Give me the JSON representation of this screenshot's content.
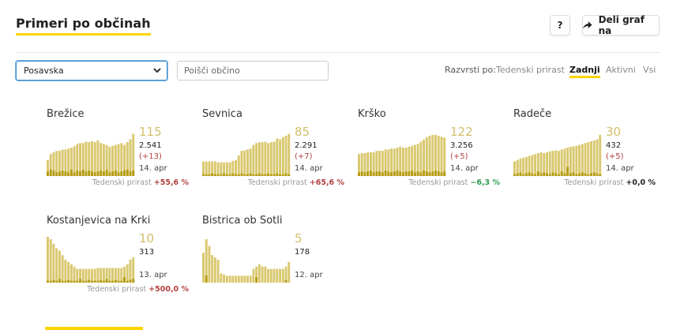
{
  "header": {
    "title": "Primeri po občinah",
    "help_label": "?",
    "share_label": "Deli graf na"
  },
  "filters": {
    "region_selected": "Posavska",
    "search_placeholder": "Poišči občino"
  },
  "sort": {
    "label": "Razvrsti po:",
    "options": [
      "Tedenski prirast",
      "Zadnji",
      "Aktivni",
      "Vsi"
    ],
    "active": "Zadnji"
  },
  "growth_label": "Tedenski prirast",
  "colors": {
    "accent": "#ffd400",
    "bar_total": "#d9c86f",
    "bar_new": "#b59b10",
    "delta_up": "#b0413e",
    "delta_down": "#2e9b53",
    "delta_zero": "#222222"
  },
  "cards": [
    {
      "name": "Brežice",
      "active": "115",
      "total": "2.541",
      "delta": "(+13)",
      "date": "14. apr",
      "growth": "+55,6 %",
      "growth_dir": "up",
      "bars": [
        0.35,
        0.48,
        0.52,
        0.55,
        0.55,
        0.58,
        0.58,
        0.6,
        0.62,
        0.65,
        0.7,
        0.72,
        0.72,
        0.75,
        0.74,
        0.76,
        0.74,
        0.78,
        0.72,
        0.7,
        0.68,
        0.64,
        0.66,
        0.68,
        0.7,
        0.72,
        0.68,
        0.74,
        0.8,
        0.92
      ],
      "bars_new": [
        0.1,
        0.14,
        0.12,
        0.08,
        0.1,
        0.12,
        0.1,
        0.08,
        0.14,
        0.08,
        0.12,
        0.1,
        0.14,
        0.1,
        0.12,
        0.1,
        0.08,
        0.1,
        0.12,
        0.1,
        0.14,
        0.08,
        0.1,
        0.12,
        0.08,
        0.1,
        0.12,
        0.14,
        0.1,
        0.12
      ]
    },
    {
      "name": "Sevnica",
      "active": "85",
      "total": "2.291",
      "delta": "(+7)",
      "date": "14. apr",
      "growth": "+65,6 %",
      "growth_dir": "up",
      "bars": [
        0.32,
        0.32,
        0.32,
        0.32,
        0.32,
        0.3,
        0.3,
        0.3,
        0.3,
        0.3,
        0.33,
        0.35,
        0.45,
        0.55,
        0.56,
        0.58,
        0.6,
        0.68,
        0.72,
        0.74,
        0.74,
        0.75,
        0.72,
        0.74,
        0.75,
        0.82,
        0.8,
        0.85,
        0.88,
        0.92
      ],
      "bars_new": [
        0.04,
        0.04,
        0.04,
        0.06,
        0.04,
        0.04,
        0.04,
        0.06,
        0.04,
        0.04,
        0.06,
        0.04,
        0.04,
        0.06,
        0.04,
        0.04,
        0.06,
        0.04,
        0.04,
        0.06,
        0.04,
        0.04,
        0.06,
        0.04,
        0.04,
        0.06,
        0.04,
        0.04,
        0.06,
        0.04
      ]
    },
    {
      "name": "Krško",
      "active": "122",
      "total": "3.256",
      "delta": "(+5)",
      "date": "14. apr",
      "growth": "−6,3 %",
      "growth_dir": "down",
      "bars": [
        0.48,
        0.5,
        0.5,
        0.52,
        0.52,
        0.52,
        0.55,
        0.55,
        0.55,
        0.58,
        0.58,
        0.6,
        0.6,
        0.62,
        0.64,
        0.62,
        0.62,
        0.64,
        0.66,
        0.68,
        0.7,
        0.75,
        0.8,
        0.85,
        0.88,
        0.9,
        0.9,
        0.88,
        0.86,
        0.84
      ],
      "bars_new": [
        0.08,
        0.1,
        0.08,
        0.1,
        0.12,
        0.08,
        0.1,
        0.1,
        0.08,
        0.12,
        0.1,
        0.08,
        0.1,
        0.12,
        0.1,
        0.08,
        0.1,
        0.1,
        0.12,
        0.08,
        0.1,
        0.08,
        0.12,
        0.1,
        0.08,
        0.1,
        0.12,
        0.1,
        0.08,
        0.1
      ]
    },
    {
      "name": "Radeče",
      "active": "30",
      "total": "432",
      "delta": "(+5)",
      "date": "14. apr",
      "growth": "+0,0 %",
      "growth_dir": "zero",
      "bars": [
        0.32,
        0.35,
        0.38,
        0.4,
        0.42,
        0.44,
        0.46,
        0.48,
        0.5,
        0.52,
        0.5,
        0.52,
        0.54,
        0.55,
        0.56,
        0.55,
        0.58,
        0.6,
        0.62,
        0.64,
        0.65,
        0.66,
        0.68,
        0.7,
        0.72,
        0.74,
        0.76,
        0.78,
        0.8,
        0.9
      ],
      "bars_new": [
        0.04,
        0.06,
        0.08,
        0.04,
        0.06,
        0.08,
        0.06,
        0.04,
        0.1,
        0.06,
        0.08,
        0.06,
        0.04,
        0.08,
        0.06,
        0.04,
        0.1,
        0.06,
        0.2,
        0.06,
        0.08,
        0.04,
        0.06,
        0.08,
        0.06,
        0.04,
        0.06,
        0.08,
        0.06,
        0.04
      ]
    },
    {
      "name": "Kostanjevica na Krki",
      "active": "10",
      "total": "313",
      "delta": "",
      "date": "13. apr",
      "growth": "+500,0 %",
      "growth_dir": "up",
      "bars": [
        1.0,
        0.95,
        0.85,
        0.75,
        0.7,
        0.6,
        0.5,
        0.45,
        0.4,
        0.35,
        0.3,
        0.3,
        0.3,
        0.3,
        0.3,
        0.3,
        0.3,
        0.32,
        0.32,
        0.32,
        0.32,
        0.32,
        0.32,
        0.32,
        0.32,
        0.32,
        0.35,
        0.4,
        0.5,
        0.55
      ],
      "bars_new": [
        0.04,
        0.04,
        0.06,
        0.04,
        0.08,
        0.04,
        0.04,
        0.06,
        0.04,
        0.04,
        0.04,
        0.08,
        0.04,
        0.04,
        0.06,
        0.04,
        0.04,
        0.04,
        0.06,
        0.04,
        0.08,
        0.04,
        0.04,
        0.06,
        0.04,
        0.04,
        0.12,
        0.04,
        0.06,
        0.08
      ]
    },
    {
      "name": "Bistrica ob Sotli",
      "active": "5",
      "total": "178",
      "delta": "",
      "date": "12. apr",
      "growth": "",
      "growth_dir": "none",
      "bars": [
        0.65,
        0.95,
        0.8,
        0.6,
        0.55,
        0.5,
        0.2,
        0.18,
        0.15,
        0.15,
        0.15,
        0.15,
        0.15,
        0.15,
        0.15,
        0.15,
        0.15,
        0.3,
        0.35,
        0.4,
        0.35,
        0.35,
        0.3,
        0.3,
        0.3,
        0.3,
        0.3,
        0.3,
        0.35,
        0.45
      ],
      "bars_new": [
        0.0,
        0.16,
        0.0,
        0.0,
        0.0,
        0.0,
        0.0,
        0.0,
        0.0,
        0.0,
        0.0,
        0.0,
        0.0,
        0.0,
        0.0,
        0.0,
        0.0,
        0.0,
        0.12,
        0.0,
        0.0,
        0.0,
        0.0,
        0.0,
        0.0,
        0.0,
        0.0,
        0.0,
        0.06,
        0.0
      ]
    }
  ]
}
